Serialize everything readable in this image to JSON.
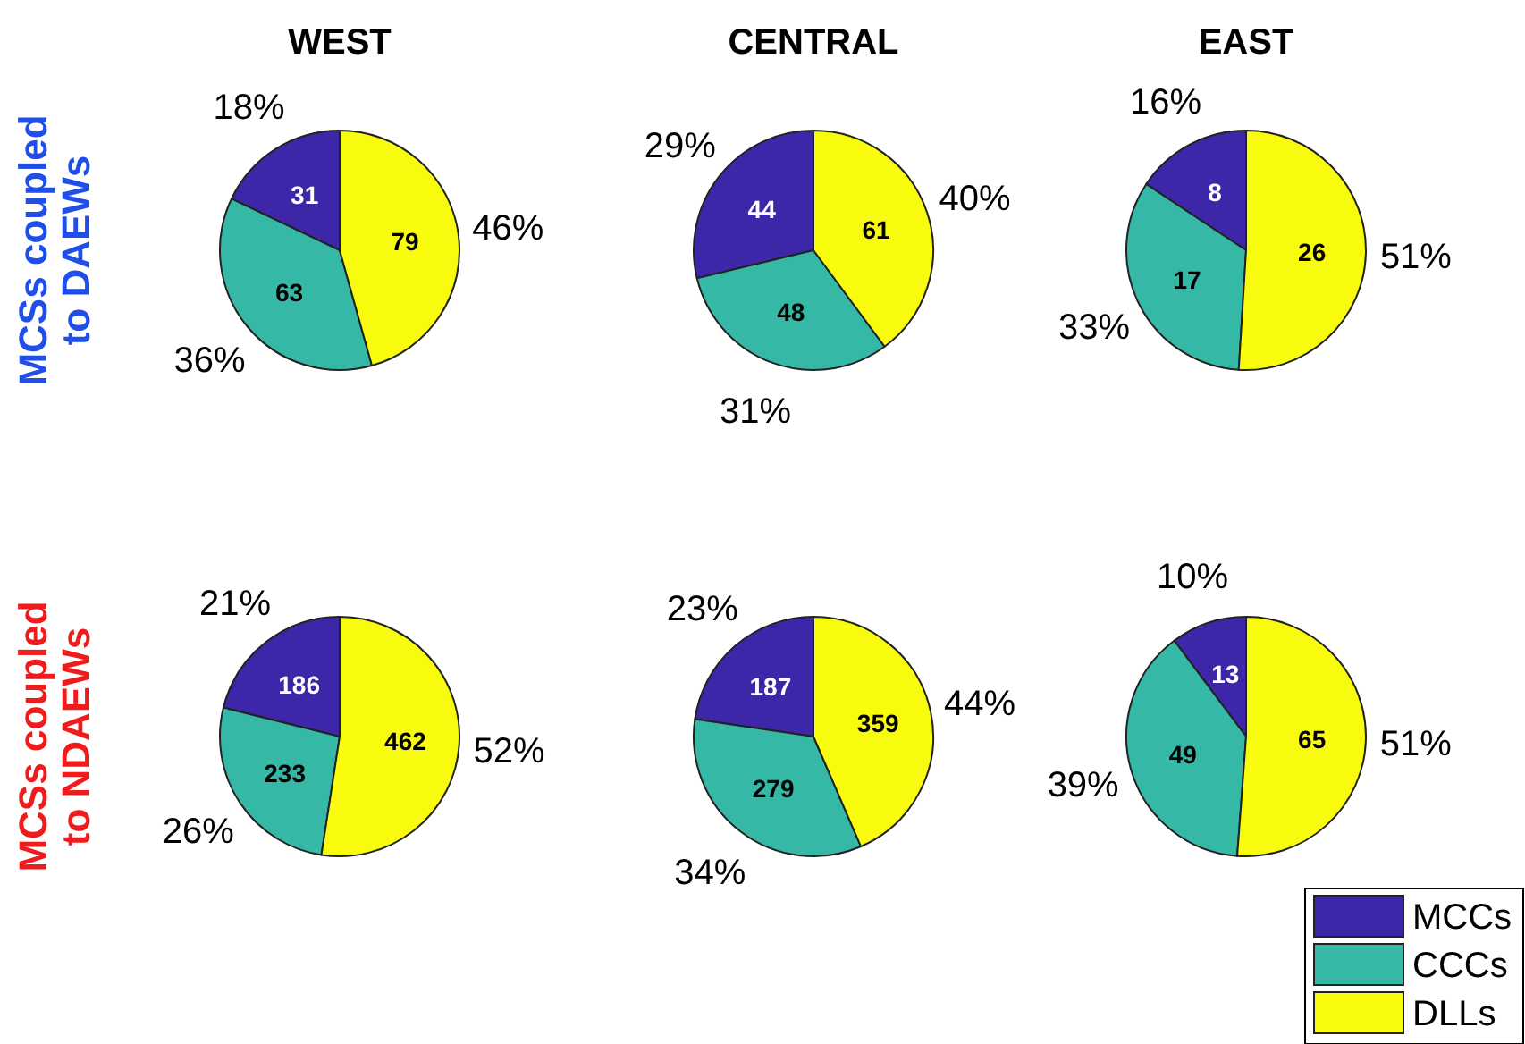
{
  "chart_data": [
    {
      "type": "pie",
      "title": "WEST",
      "ylabel": "MCSs coupled to DAEWs",
      "categories": [
        null,
        null,
        null
      ],
      "values": [
        31,
        63,
        79
      ],
      "colors": [
        "#3e26a8",
        "#35b8a6",
        "#f9fb0e"
      ],
      "data_labels": true,
      "annotations": [
        "18%",
        "36%",
        "46%"
      ]
    },
    {
      "type": "pie",
      "title": "CENTRAL",
      "categories": [
        null,
        null,
        null
      ],
      "values": [
        44,
        48,
        61
      ],
      "colors": [
        "#3e26a8",
        "#35b8a6",
        "#f9fb0e"
      ],
      "data_labels": true,
      "annotations": [
        "29%",
        "31%",
        "40%"
      ]
    },
    {
      "type": "pie",
      "title": "EAST",
      "categories": [
        null,
        null,
        null
      ],
      "values": [
        8,
        17,
        26
      ],
      "colors": [
        "#3e26a8",
        "#35b8a6",
        "#f9fb0e"
      ],
      "data_labels": true,
      "annotations": [
        "16%",
        "33%",
        "51%"
      ]
    },
    {
      "type": "pie",
      "ylabel": "MCSs coupled to NDAEWs",
      "categories": [
        null,
        null,
        null
      ],
      "values": [
        186,
        233,
        462
      ],
      "colors": [
        "#3e26a8",
        "#35b8a6",
        "#f9fb0e"
      ],
      "data_labels": true,
      "annotations": [
        "21%",
        "26%",
        "52%"
      ]
    },
    {
      "type": "pie",
      "categories": [
        null,
        null,
        null
      ],
      "values": [
        187,
        279,
        359
      ],
      "colors": [
        "#3e26a8",
        "#35b8a6",
        "#f9fb0e"
      ],
      "data_labels": true,
      "annotations": [
        "23%",
        "34%",
        "44%"
      ]
    },
    {
      "type": "pie",
      "categories": [
        "MCCs",
        "CCCs",
        "DLLs"
      ],
      "values": [
        13,
        49,
        65
      ],
      "colors": [
        "#3e26a8",
        "#35b8a6",
        "#f9fb0e"
      ],
      "data_labels": true,
      "annotations": [
        "10%",
        "39%",
        "51%"
      ],
      "legend": "bottom right"
    }
  ]
}
